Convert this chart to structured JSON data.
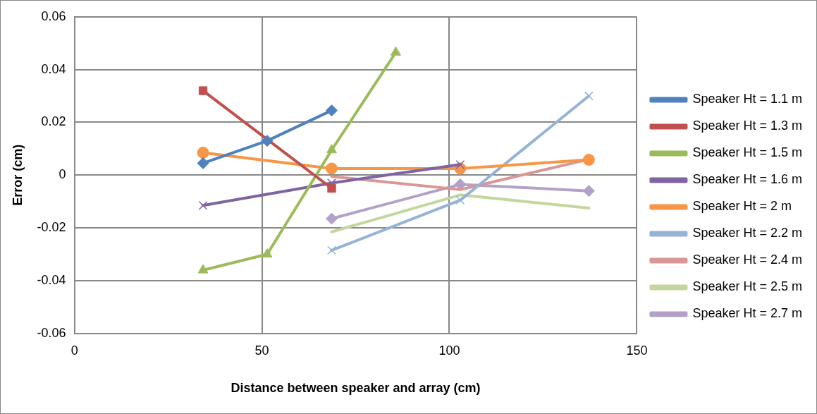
{
  "chart_data": {
    "type": "line",
    "xlabel": "Distance between speaker and array (cm)",
    "ylabel": "Error (cm)",
    "xlim": [
      0,
      150
    ],
    "xticks": [
      0,
      50,
      100,
      150
    ],
    "ylim": [
      -0.06,
      0.06
    ],
    "yticks": [
      -0.06,
      -0.04,
      -0.02,
      0,
      0.02,
      0.04,
      0.06
    ],
    "grid": true,
    "legend": "right",
    "line_style": "solid",
    "series": [
      {
        "name": "Speaker Ht = 1.1 m",
        "color": "#4f81bd",
        "marker": "diamond",
        "x": [
          34.3,
          51.4,
          68.6
        ],
        "values": [
          0.0045,
          0.013,
          0.0245
        ]
      },
      {
        "name": "Speaker Ht = 1.3 m",
        "color": "#c0504d",
        "marker": "square",
        "x": [
          34.3,
          68.6
        ],
        "values": [
          0.032,
          -0.005
        ]
      },
      {
        "name": "Speaker Ht = 1.5 m",
        "color": "#9bbb59",
        "marker": "triangle",
        "x": [
          34.3,
          51.4,
          68.6,
          85.7
        ],
        "values": [
          -0.036,
          -0.03,
          0.0095,
          0.0465
        ]
      },
      {
        "name": "Speaker Ht = 1.6 m",
        "color": "#8064a2",
        "marker": "cross",
        "x": [
          34.3,
          68.6,
          102.9
        ],
        "values": [
          -0.0115,
          -0.003,
          0.004
        ]
      },
      {
        "name": "Speaker Ht = 2 m",
        "color": "#f79646",
        "marker": "circle",
        "x": [
          34.3,
          68.6,
          102.9,
          137.2
        ],
        "values": [
          0.0085,
          0.0025,
          0.0025,
          0.0058
        ]
      },
      {
        "name": "Speaker Ht = 2.2 m",
        "color": "#95b3d7",
        "marker": "cross",
        "x": [
          68.6,
          102.9,
          137.2
        ],
        "values": [
          -0.0285,
          -0.0095,
          0.03
        ]
      },
      {
        "name": "Speaker Ht = 2.4 m",
        "color": "#d99694",
        "marker": "none",
        "x": [
          68.6,
          102.9,
          137.2
        ],
        "values": [
          -0.0005,
          -0.0055,
          0.006
        ]
      },
      {
        "name": "Speaker Ht = 2.5 m",
        "color": "#c3d69b",
        "marker": "none",
        "x": [
          68.6,
          102.9,
          137.2
        ],
        "values": [
          -0.0215,
          -0.0075,
          -0.0125
        ]
      },
      {
        "name": "Speaker Ht = 2.7 m",
        "color": "#b3a2c7",
        "marker": "diamond",
        "x": [
          68.6,
          102.9,
          137.2
        ],
        "values": [
          -0.0165,
          -0.0035,
          -0.006
        ]
      }
    ]
  }
}
